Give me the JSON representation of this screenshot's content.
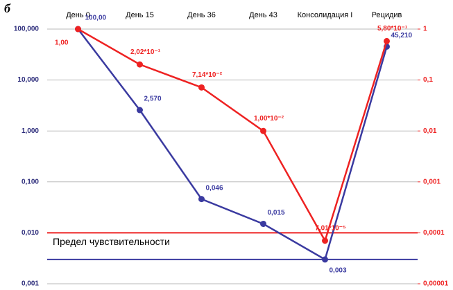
{
  "chart_data": {
    "type": "line",
    "panel_label": "б",
    "categories": [
      "День 0",
      "День 15",
      "День 36",
      "День 43",
      "Консолидация I",
      "Рецидив"
    ],
    "log_scale": true,
    "grid": true,
    "ylim": [
      0.001,
      100
    ],
    "yticks": [
      {
        "value": 100,
        "label": "100,000"
      },
      {
        "value": 10,
        "label": "10,000"
      },
      {
        "value": 1,
        "label": "1,000"
      },
      {
        "value": 0.1,
        "label": "0,100"
      },
      {
        "value": 0.01,
        "label": "0,010"
      },
      {
        "value": 0.001,
        "label": "0,001"
      }
    ],
    "y2lim": [
      1e-05,
      1
    ],
    "y2ticks": [
      1,
      {
        "value": 0.1,
        "label": "0,1"
      },
      {
        "value": 0.01,
        "label": "0,01"
      },
      {
        "value": 0.001,
        "label": "0,001"
      },
      {
        "value": 0.0001,
        "label": "0,0001"
      },
      {
        "value": 1e-05,
        "label": "0,00001"
      }
    ],
    "series": [
      {
        "color": "#3a3aa0",
        "values": [
          100,
          2.57,
          0.046,
          0.015,
          0.003,
          45.21
        ],
        "value_labels": [
          "100,00",
          "2,570",
          "0,046",
          "0,015",
          "0,003",
          "45,210"
        ]
      },
      {
        "color": "#ee2222",
        "axis": "y2",
        "values": [
          1,
          0.202,
          0.0714,
          0.01,
          7.01e-05,
          0.58
        ],
        "value_labels": [
          "1,00",
          "2,02*10⁻¹",
          "7,14*10⁻²",
          "1,00*10⁻²",
          "7,01*10⁻⁵",
          "5,80*10⁻¹"
        ]
      }
    ],
    "reference_lines": [
      {
        "value": 0.01,
        "color": "#ee2222",
        "label": "Предел чувствительности"
      },
      {
        "value": 0.003,
        "color": "#3a3aa0"
      }
    ]
  }
}
